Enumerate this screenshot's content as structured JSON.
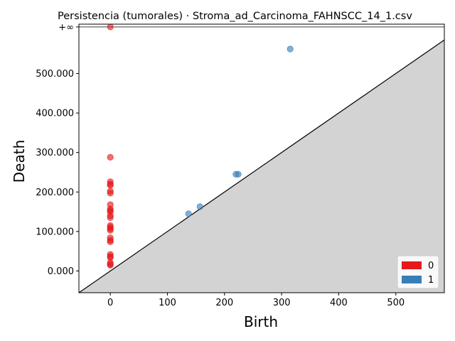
{
  "chart_data": {
    "type": "scatter",
    "title": "Persistencia (tumorales) · Stroma_ad_Carcinoma_FAHNSCC_14_1.csv",
    "xlabel": "Birth",
    "ylabel": "Death",
    "xlim": [
      -55,
      585
    ],
    "ylim": [
      -55,
      625
    ],
    "infinity_label": "+∞",
    "infinity_value": 618,
    "x_ticks": [
      {
        "value": 0,
        "label": "0"
      },
      {
        "value": 100,
        "label": "100"
      },
      {
        "value": 200,
        "label": "200"
      },
      {
        "value": 300,
        "label": "300"
      },
      {
        "value": 400,
        "label": "400"
      },
      {
        "value": 500,
        "label": "500"
      }
    ],
    "y_ticks": [
      {
        "value": 0,
        "label": "0.000"
      },
      {
        "value": 100,
        "label": "100.000"
      },
      {
        "value": 200,
        "label": "200.000"
      },
      {
        "value": 300,
        "label": "300.000"
      },
      {
        "value": 400,
        "label": "400.000"
      },
      {
        "value": 500,
        "label": "500.000"
      }
    ],
    "legend_placement": "bottom-right",
    "grid": false,
    "series": [
      {
        "name": "0",
        "color": "#e41a1c",
        "points": [
          {
            "x": 0,
            "y": 618,
            "infinite": true
          },
          {
            "x": 0,
            "y": 288
          },
          {
            "x": 0,
            "y": 226
          },
          {
            "x": 0,
            "y": 220
          },
          {
            "x": 0,
            "y": 217
          },
          {
            "x": 0,
            "y": 202
          },
          {
            "x": 0,
            "y": 197
          },
          {
            "x": 0,
            "y": 168
          },
          {
            "x": 0,
            "y": 157
          },
          {
            "x": 0,
            "y": 153
          },
          {
            "x": 0,
            "y": 150
          },
          {
            "x": 0,
            "y": 140
          },
          {
            "x": 0,
            "y": 135
          },
          {
            "x": 0,
            "y": 115
          },
          {
            "x": 0,
            "y": 111
          },
          {
            "x": 0,
            "y": 107
          },
          {
            "x": 0,
            "y": 103
          },
          {
            "x": 0,
            "y": 84
          },
          {
            "x": 0,
            "y": 78
          },
          {
            "x": 0,
            "y": 74
          },
          {
            "x": 0,
            "y": 42
          },
          {
            "x": 0,
            "y": 37
          },
          {
            "x": 0,
            "y": 34
          },
          {
            "x": 0,
            "y": 21
          },
          {
            "x": 0,
            "y": 17
          },
          {
            "x": 0,
            "y": 15
          }
        ]
      },
      {
        "name": "1",
        "color": "#377eb8",
        "points": [
          {
            "x": 315,
            "y": 562
          },
          {
            "x": 220,
            "y": 245
          },
          {
            "x": 224,
            "y": 245
          },
          {
            "x": 157,
            "y": 163
          },
          {
            "x": 137,
            "y": 145
          }
        ]
      }
    ]
  }
}
